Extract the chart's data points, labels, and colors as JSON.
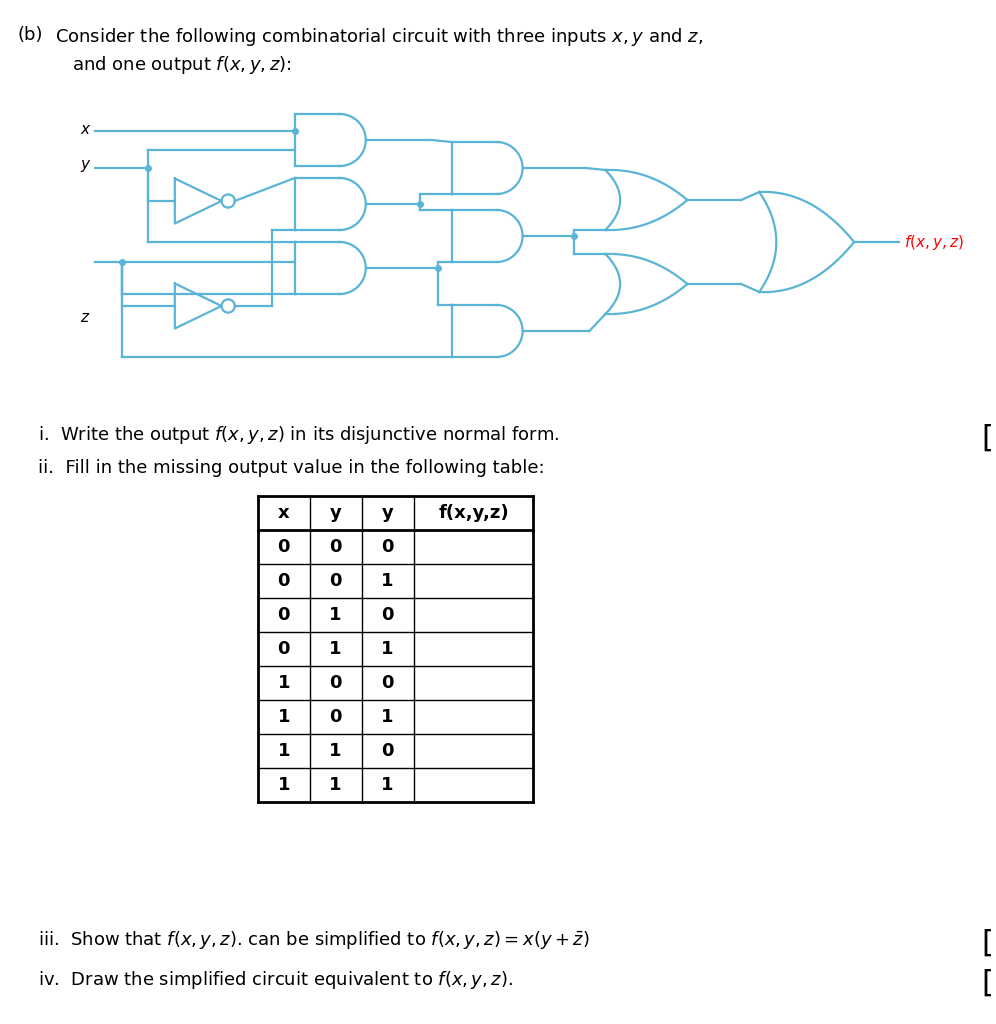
{
  "circuit_color": "#5ab4d6",
  "text_color": "#000000",
  "bg_color": "#ffffff",
  "lw": 1.6,
  "dot_size": 4,
  "font_size_title": 13,
  "font_size_circuit_label": 11,
  "font_size_table": 13,
  "table_headers": [
    "x",
    "y",
    "y",
    "f(x,y,z)"
  ],
  "table_rows": [
    [
      "0",
      "0",
      "0"
    ],
    [
      "0",
      "0",
      "1"
    ],
    [
      "0",
      "1",
      "0"
    ],
    [
      "0",
      "1",
      "1"
    ],
    [
      "1",
      "0",
      "0"
    ],
    [
      "1",
      "0",
      "1"
    ],
    [
      "1",
      "1",
      "0"
    ],
    [
      "1",
      "1",
      "1"
    ]
  ]
}
